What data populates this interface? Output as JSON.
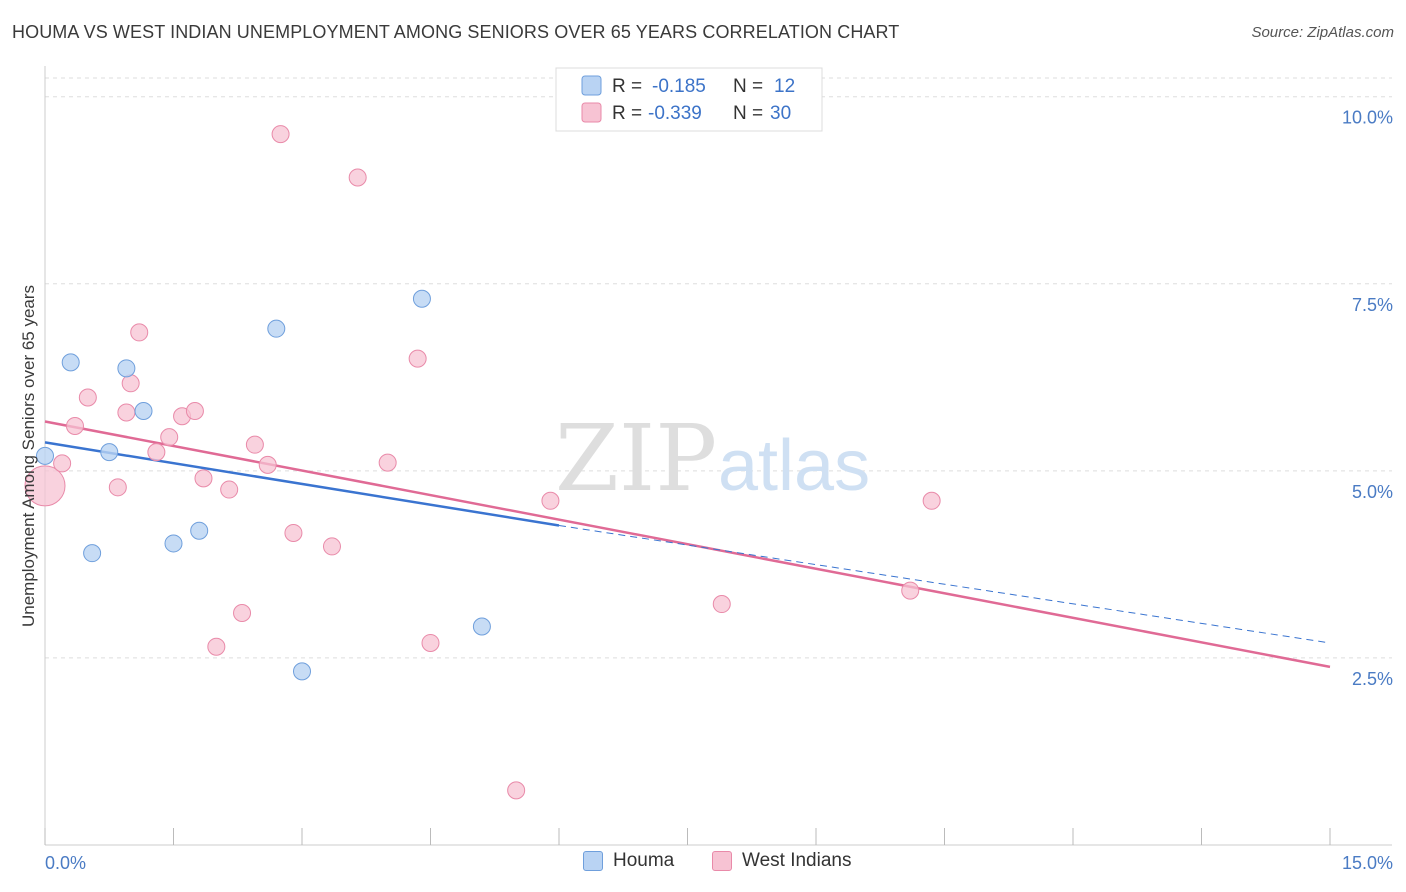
{
  "title": "HOUMA VS WEST INDIAN UNEMPLOYMENT AMONG SENIORS OVER 65 YEARS CORRELATION CHART",
  "source": "Source: ZipAtlas.com",
  "watermark": {
    "zip": "ZIP",
    "atlas": "atlas"
  },
  "colors": {
    "houma_fill": "#b9d3f3",
    "houma_stroke": "#6f9fdc",
    "houma_line": "#3a74d0",
    "west_fill": "#f7c3d3",
    "west_stroke": "#e98aa9",
    "west_line": "#e06a95",
    "tick_text": "#4a7bc4",
    "grid": "#dddddd"
  },
  "legend": {
    "rows": [
      {
        "r_label": "R =",
        "r_value": "-0.185",
        "n_label": "N =",
        "n_value": "12"
      },
      {
        "r_label": "R =",
        "r_value": "-0.339",
        "n_label": "N =",
        "n_value": "30"
      }
    ]
  },
  "chart_data": {
    "type": "scatter",
    "xlabel": "",
    "ylabel": "Unemployment Among Seniors over 65 years",
    "xlim": [
      0,
      15
    ],
    "ylim": [
      0.0,
      10.25
    ],
    "x_tick_labels": [
      "0.0%",
      "15.0%"
    ],
    "y_ticks": [
      2.5,
      5.0,
      7.5,
      10.0
    ],
    "y_tick_labels": [
      "2.5%",
      "5.0%",
      "7.5%",
      "10.0%"
    ],
    "grid": true,
    "legend_position": "top-center",
    "series": [
      {
        "name": "Houma",
        "points": [
          {
            "x": 0.0,
            "y": 5.2
          },
          {
            "x": 0.3,
            "y": 6.45
          },
          {
            "x": 0.55,
            "y": 3.9
          },
          {
            "x": 0.75,
            "y": 5.25
          },
          {
            "x": 0.95,
            "y": 6.37
          },
          {
            "x": 1.15,
            "y": 5.8
          },
          {
            "x": 1.5,
            "y": 4.03
          },
          {
            "x": 1.8,
            "y": 4.2
          },
          {
            "x": 2.7,
            "y": 6.9
          },
          {
            "x": 3.0,
            "y": 2.32
          },
          {
            "x": 4.4,
            "y": 7.3
          },
          {
            "x": 5.1,
            "y": 2.92
          }
        ],
        "trend": {
          "x": [
            0.0,
            6.0
          ],
          "y": [
            5.38,
            4.27
          ]
        },
        "trend_dashed": {
          "x": [
            6.0,
            15.0
          ],
          "y": [
            4.27,
            2.7
          ]
        }
      },
      {
        "name": "West Indians",
        "points": [
          {
            "x": 0.0,
            "y": 4.8
          },
          {
            "x": 0.2,
            "y": 5.1
          },
          {
            "x": 0.35,
            "y": 5.6
          },
          {
            "x": 0.5,
            "y": 5.98
          },
          {
            "x": 0.85,
            "y": 4.78
          },
          {
            "x": 1.0,
            "y": 6.17
          },
          {
            "x": 0.95,
            "y": 5.78
          },
          {
            "x": 1.1,
            "y": 6.85
          },
          {
            "x": 1.3,
            "y": 5.25
          },
          {
            "x": 1.45,
            "y": 5.45
          },
          {
            "x": 1.6,
            "y": 5.73
          },
          {
            "x": 1.75,
            "y": 5.8
          },
          {
            "x": 1.85,
            "y": 4.9
          },
          {
            "x": 2.0,
            "y": 2.65
          },
          {
            "x": 2.15,
            "y": 4.75
          },
          {
            "x": 2.3,
            "y": 3.1
          },
          {
            "x": 2.45,
            "y": 5.35
          },
          {
            "x": 2.6,
            "y": 5.08
          },
          {
            "x": 2.75,
            "y": 9.5
          },
          {
            "x": 2.9,
            "y": 4.17
          },
          {
            "x": 3.35,
            "y": 3.99
          },
          {
            "x": 3.65,
            "y": 8.92
          },
          {
            "x": 4.0,
            "y": 5.11
          },
          {
            "x": 4.35,
            "y": 6.5
          },
          {
            "x": 4.5,
            "y": 2.7
          },
          {
            "x": 5.5,
            "y": 0.73
          },
          {
            "x": 5.9,
            "y": 4.6
          },
          {
            "x": 7.9,
            "y": 3.22
          },
          {
            "x": 10.1,
            "y": 3.4
          },
          {
            "x": 10.35,
            "y": 4.6
          }
        ],
        "trend": {
          "x": [
            0.0,
            15.0
          ],
          "y": [
            5.66,
            2.38
          ]
        }
      }
    ]
  }
}
